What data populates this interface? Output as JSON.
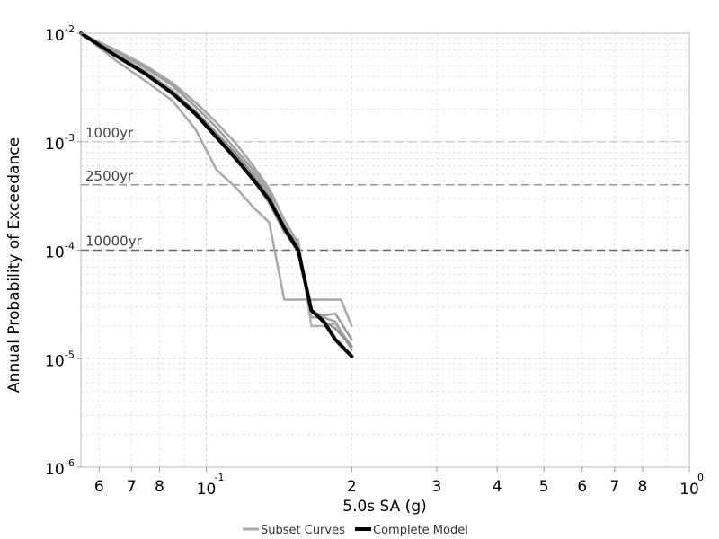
{
  "chart_data": {
    "type": "line",
    "xlabel": "5.0s SA (g)",
    "ylabel": "Annual Probability of Exceedance",
    "x_scale": "log",
    "y_scale": "log",
    "xlim": [
      0.055,
      1.0
    ],
    "ylim": [
      1e-06,
      0.01
    ],
    "grid": true,
    "legend_position": "bottom-center",
    "x_ticks": [
      {
        "value": 0.06,
        "label": "6"
      },
      {
        "value": 0.07,
        "label": "7"
      },
      {
        "value": 0.08,
        "label": "8"
      },
      {
        "value": 0.1,
        "label": "10",
        "exp": "-1"
      },
      {
        "value": 0.2,
        "label": "2"
      },
      {
        "value": 0.3,
        "label": "3"
      },
      {
        "value": 0.4,
        "label": "4"
      },
      {
        "value": 0.5,
        "label": "5"
      },
      {
        "value": 0.6,
        "label": "6"
      },
      {
        "value": 0.7,
        "label": "7"
      },
      {
        "value": 0.8,
        "label": "8"
      },
      {
        "value": 1.0,
        "label": "10",
        "exp": "0"
      }
    ],
    "y_ticks": [
      {
        "value": 0.01,
        "label": "10",
        "exp": "-2"
      },
      {
        "value": 0.001,
        "label": "10",
        "exp": "-3"
      },
      {
        "value": 0.0001,
        "label": "10",
        "exp": "-4"
      },
      {
        "value": 1e-05,
        "label": "10",
        "exp": "-5"
      },
      {
        "value": 1e-06,
        "label": "10",
        "exp": "-6"
      }
    ],
    "reference_lines": [
      {
        "label": "1000yr",
        "y": 0.001,
        "color": "#cccccc"
      },
      {
        "label": "2500yr",
        "y": 0.0004,
        "color": "#999999"
      },
      {
        "label": "10000yr",
        "y": 0.0001,
        "color": "#666666"
      }
    ],
    "series": [
      {
        "name": "Subset Curves",
        "group": "subset",
        "color": "#aaaaaa",
        "x": [
          0.055,
          0.065,
          0.075,
          0.085,
          0.095,
          0.105,
          0.115,
          0.125,
          0.135,
          0.145,
          0.16,
          0.17,
          0.19,
          0.2
        ],
        "y": [
          0.01,
          0.0056,
          0.0036,
          0.0024,
          0.0013,
          0.00055,
          0.00038,
          0.00025,
          0.00018,
          3.5e-05,
          3.5e-05,
          3.5e-05,
          3.5e-05,
          2e-05
        ]
      },
      {
        "group": "subset",
        "color": "#b5b5b5",
        "x": [
          0.055,
          0.065,
          0.075,
          0.085,
          0.095,
          0.105,
          0.115,
          0.125,
          0.135,
          0.145,
          0.155,
          0.165,
          0.175,
          0.185,
          0.2
        ],
        "y": [
          0.01,
          0.0065,
          0.0045,
          0.003,
          0.0019,
          0.0012,
          0.00075,
          0.00045,
          0.00027,
          0.000145,
          0.000125,
          2e-05,
          2e-05,
          2.1e-05,
          1.3e-05
        ]
      },
      {
        "group": "subset",
        "color": "#9e9e9e",
        "x": [
          0.055,
          0.065,
          0.075,
          0.085,
          0.095,
          0.105,
          0.115,
          0.125,
          0.135,
          0.145,
          0.155,
          0.165,
          0.175,
          0.185,
          0.2
        ],
        "y": [
          0.01,
          0.0068,
          0.0048,
          0.0033,
          0.0021,
          0.00135,
          0.00085,
          0.00055,
          0.00034,
          0.00015,
          9.5e-05,
          2.7e-05,
          2.5e-05,
          2.6e-05,
          1.5e-05
        ]
      },
      {
        "group": "subset",
        "color": "#a6a6a6",
        "x": [
          0.055,
          0.065,
          0.075,
          0.085,
          0.095,
          0.105,
          0.115,
          0.125,
          0.135,
          0.145,
          0.155,
          0.165,
          0.175,
          0.185,
          0.2
        ],
        "y": [
          0.01,
          0.007,
          0.005,
          0.0035,
          0.0023,
          0.0015,
          0.00097,
          0.0006,
          0.00037,
          0.00019,
          0.000115,
          2.4e-05,
          2.4e-05,
          2.2e-05,
          1.2e-05
        ]
      },
      {
        "group": "subset",
        "color": "#8f8f8f",
        "x": [
          0.055,
          0.065,
          0.075,
          0.085,
          0.095,
          0.105,
          0.115,
          0.125,
          0.135,
          0.145,
          0.155,
          0.165,
          0.175,
          0.185,
          0.2
        ],
        "y": [
          0.01,
          0.0063,
          0.0043,
          0.0029,
          0.0019,
          0.0012,
          0.00078,
          0.0005,
          0.00031,
          0.00017,
          0.000105,
          2.8e-05,
          2.2e-05,
          1.9e-05,
          1.3e-05
        ]
      },
      {
        "name": "Complete Model",
        "group": "complete",
        "color": "#000000",
        "x": [
          0.055,
          0.065,
          0.075,
          0.085,
          0.095,
          0.105,
          0.115,
          0.125,
          0.135,
          0.145,
          0.155,
          0.165,
          0.175,
          0.185,
          0.2
        ],
        "y": [
          0.01,
          0.0062,
          0.0042,
          0.0028,
          0.0018,
          0.0011,
          0.0007,
          0.00045,
          0.00029,
          0.00016,
          0.0001,
          2.8e-05,
          2.2e-05,
          1.5e-05,
          1.05e-05
        ]
      }
    ]
  }
}
